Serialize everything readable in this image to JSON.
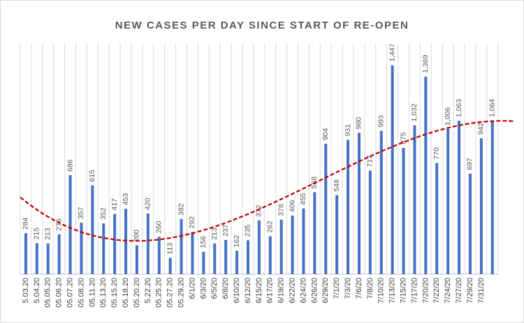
{
  "chart_data": {
    "type": "bar",
    "title": "NEW CASES PER DAY SINCE START OF RE-OPEN",
    "categories": [
      "5.03.20",
      "5.04.20",
      "05.05.20",
      "05.06.20",
      "05.07.20",
      "05.08.20",
      "05.11.20",
      "05.13.20",
      "05.15.20",
      "05.18.20",
      "05.20.20",
      "5.22.20",
      "05.25.20",
      "05.27.20",
      "05.29.20",
      "6/1/20",
      "6/3/20",
      "6/5/20",
      "6/8/20",
      "6/10/20",
      "6/12/20",
      "6/15/20",
      "6/17/20",
      "6/19/20",
      "6/22/20",
      "6/24/20",
      "6/26/20",
      "6/29/20",
      "7/1/20",
      "7/3/20",
      "7/6/20",
      "7/8/20",
      "7/10/20",
      "7/13/20",
      "7/15/20",
      "7/17/20",
      "7/20/20",
      "7/22/20",
      "7/24/20",
      "7/27/20",
      "7/29/20",
      "7/31/20",
      null
    ],
    "values": [
      284,
      215,
      213,
      276,
      686,
      357,
      615,
      352,
      417,
      453,
      200,
      420,
      260,
      113,
      382,
      292,
      156,
      213,
      237,
      162,
      235,
      372,
      262,
      378,
      406,
      455,
      568,
      904,
      548,
      931,
      980,
      717,
      993,
      1447,
      875,
      1032,
      1369,
      770,
      1006,
      1063,
      697,
      942,
      1064
    ],
    "value_labels": [
      "284",
      "215",
      "213",
      "276",
      "686",
      "357",
      "615",
      "352",
      "417",
      "453",
      "200",
      "420",
      "260",
      "113",
      "382",
      "292",
      "156",
      "213",
      "237",
      "162",
      "235",
      "372",
      "262",
      "378",
      "406",
      "455",
      "568",
      "904",
      "548",
      "931",
      "980",
      "717",
      "993",
      "1,447",
      "875",
      "1,032",
      "1,369",
      "770",
      "1,006",
      "1,063",
      "697",
      "942",
      "1,064"
    ],
    "color": "#4472c4",
    "ylim": [
      0,
      1600
    ],
    "grid": true,
    "trendline": {
      "type": "polynomial",
      "order": 3,
      "color": "#c00000"
    }
  }
}
